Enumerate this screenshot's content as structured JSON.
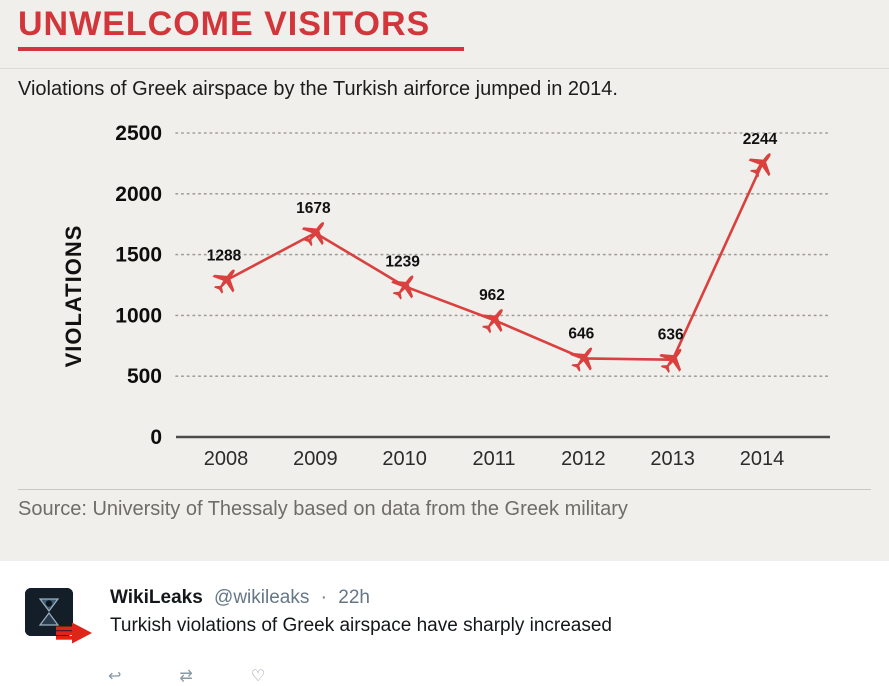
{
  "chart": {
    "subtitle": "Violations of Greek airspace by the Turkish airforce jumped in 2014.",
    "source": "Source: University of Thessaly based on data from the Greek military"
  },
  "chart_data": {
    "type": "line",
    "title": "UNWELCOME VISITORS",
    "categories": [
      "2008",
      "2009",
      "2010",
      "2011",
      "2012",
      "2013",
      "2014"
    ],
    "values": [
      1288,
      1678,
      1239,
      962,
      646,
      636,
      2244
    ],
    "xlabel": "",
    "ylabel": "VIOLATIONS",
    "ylim": [
      0,
      2500
    ],
    "yticks": [
      0,
      500,
      1000,
      1500,
      2000,
      2500
    ],
    "grid": "dotted-horizontal",
    "legend": "none",
    "marker": "airplane",
    "line_color": "#d9403e"
  },
  "tweet": {
    "author": "WikiLeaks",
    "handle": "@wikileaks",
    "separator": "·",
    "time": "22h",
    "text": "Turkish violations of Greek airspace have sharply increased",
    "actions": [
      {
        "name": "reply-icon",
        "glyph": "↩"
      },
      {
        "name": "retweet-icon",
        "glyph": "⇄"
      },
      {
        "name": "like-icon",
        "glyph": "♡"
      }
    ]
  },
  "icons": {
    "avatar": "wikileaks-hourglass-logo",
    "arrow": "red-striped-right-arrow"
  },
  "colors": {
    "accent_red": "#d2363b",
    "line_red": "#d9403e",
    "arrow_red": "#e0241a",
    "chart_bg": "#f1efeb",
    "tweet_handle_gray": "#657786"
  }
}
